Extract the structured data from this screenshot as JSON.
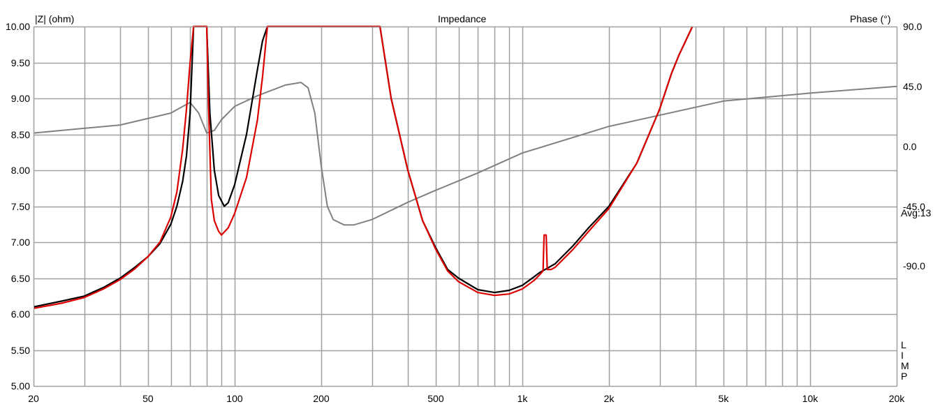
{
  "chart_data": {
    "type": "line",
    "title": "Impedance",
    "ylabel": "|Z| (ohm)",
    "y2label": "Phase (°)",
    "avg_label": "Avg:13",
    "side_tag": [
      "L",
      "I",
      "M",
      "P"
    ],
    "x_scale": "log",
    "xlim": [
      20,
      20000
    ],
    "ylim": [
      5.0,
      10.0
    ],
    "y2lim": [
      -180,
      90
    ],
    "grid": true,
    "x_ticks": [
      {
        "v": 20,
        "label": "20"
      },
      {
        "v": 50,
        "label": "50"
      },
      {
        "v": 100,
        "label": "100"
      },
      {
        "v": 200,
        "label": "200"
      },
      {
        "v": 500,
        "label": "500"
      },
      {
        "v": 1000,
        "label": "1k"
      },
      {
        "v": 2000,
        "label": "2k"
      },
      {
        "v": 5000,
        "label": "5k"
      },
      {
        "v": 10000,
        "label": "10k"
      },
      {
        "v": 20000,
        "label": "20k"
      }
    ],
    "y_ticks": [
      "10.00",
      "9.50",
      "9.00",
      "8.50",
      "8.00",
      "7.50",
      "7.00",
      "6.50",
      "6.00",
      "5.50",
      "5.00"
    ],
    "y2_ticks": [
      "90.0",
      "45.0",
      "0.0",
      "-45.0",
      "-90.0"
    ],
    "colors": {
      "impedance_a": "#000000",
      "impedance_b": "#dd0000",
      "phase": "#808080",
      "grid": "#a0a0a0"
    },
    "series": [
      {
        "axis": "left",
        "color": "#000000",
        "x": [
          20,
          25,
          30,
          35,
          40,
          45,
          50,
          55,
          60,
          63,
          66,
          68,
          70,
          72,
          80,
          82,
          85,
          88,
          92,
          95,
          100,
          110,
          120,
          125,
          130,
          320,
          350,
          400,
          450,
          500,
          550,
          600,
          700,
          800,
          900,
          1000,
          1100,
          1150,
          1200,
          1300,
          1500,
          1700,
          2000,
          2500,
          3000,
          3300,
          3500,
          3900
        ],
        "y": [
          6.1,
          6.18,
          6.25,
          6.37,
          6.5,
          6.65,
          6.8,
          6.98,
          7.25,
          7.5,
          7.85,
          8.2,
          8.8,
          10.0,
          10.0,
          8.8,
          8.0,
          7.65,
          7.5,
          7.55,
          7.8,
          8.5,
          9.4,
          9.8,
          10.0,
          10.0,
          9.0,
          8.0,
          7.3,
          6.92,
          6.62,
          6.5,
          6.34,
          6.3,
          6.33,
          6.4,
          6.52,
          6.58,
          6.62,
          6.7,
          6.95,
          7.2,
          7.5,
          8.1,
          8.85,
          9.35,
          9.6,
          10.0
        ]
      },
      {
        "axis": "left",
        "color": "#dd0000",
        "x": [
          20,
          25,
          30,
          35,
          40,
          45,
          50,
          55,
          60,
          63,
          66,
          68,
          70,
          72,
          80,
          81,
          83,
          85,
          88,
          90,
          95,
          100,
          110,
          120,
          125,
          130,
          320,
          350,
          400,
          450,
          500,
          550,
          600,
          700,
          800,
          900,
          1000,
          1100,
          1150,
          1180,
          1190,
          1200,
          1210,
          1220,
          1260,
          1300,
          1500,
          1700,
          2000,
          2500,
          3000,
          3300,
          3500,
          3900
        ],
        "y": [
          6.08,
          6.15,
          6.23,
          6.35,
          6.48,
          6.63,
          6.8,
          7.0,
          7.35,
          7.7,
          8.3,
          8.85,
          9.5,
          10.0,
          10.0,
          9.0,
          7.6,
          7.3,
          7.15,
          7.1,
          7.2,
          7.4,
          7.9,
          8.7,
          9.3,
          10.0,
          10.0,
          9.0,
          8.0,
          7.3,
          6.9,
          6.6,
          6.45,
          6.3,
          6.26,
          6.28,
          6.35,
          6.47,
          6.55,
          6.6,
          7.1,
          7.1,
          7.1,
          6.62,
          6.62,
          6.65,
          6.9,
          7.15,
          7.47,
          8.1,
          8.85,
          9.35,
          9.6,
          10.0
        ]
      },
      {
        "axis": "right",
        "color": "#808080",
        "x": [
          20,
          40,
          60,
          70,
          75,
          80,
          85,
          90,
          100,
          120,
          150,
          170,
          180,
          190,
          200,
          210,
          220,
          240,
          260,
          300,
          400,
          500,
          700,
          1000,
          2000,
          5000,
          10000,
          20000
        ],
        "y": [
          10,
          16,
          25,
          33,
          25,
          10,
          12,
          20,
          30,
          38,
          46,
          48,
          44,
          25,
          -15,
          -45,
          -55,
          -59,
          -59,
          -55,
          -42,
          -33,
          -20,
          -5,
          15,
          34,
          40,
          45
        ]
      }
    ]
  }
}
